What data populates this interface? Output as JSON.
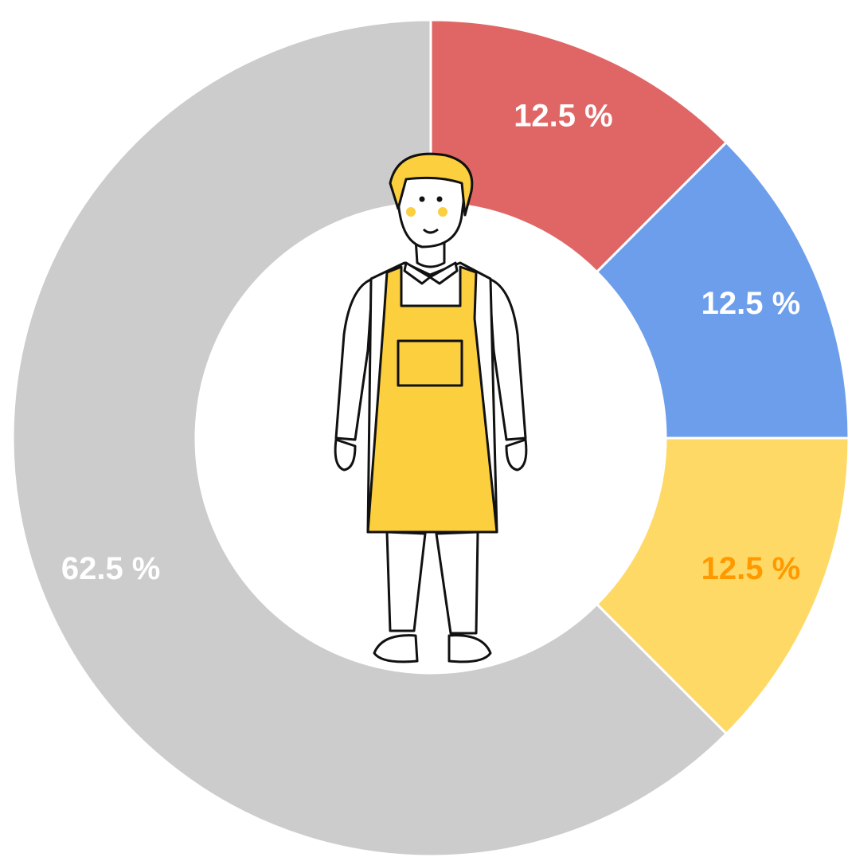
{
  "chart_data": {
    "type": "donut",
    "values": [
      12.5,
      12.5,
      12.5,
      62.5
    ],
    "value_labels": [
      "12.5 %",
      "12.5 %",
      "12.5 %",
      "62.5 %"
    ],
    "colors": [
      "#e06666",
      "#6d9eeb",
      "#ffd966",
      "#cccccc"
    ],
    "label_colors": [
      "#ffffff",
      "#ffffff",
      "#ff9900",
      "#ffffff"
    ]
  }
}
